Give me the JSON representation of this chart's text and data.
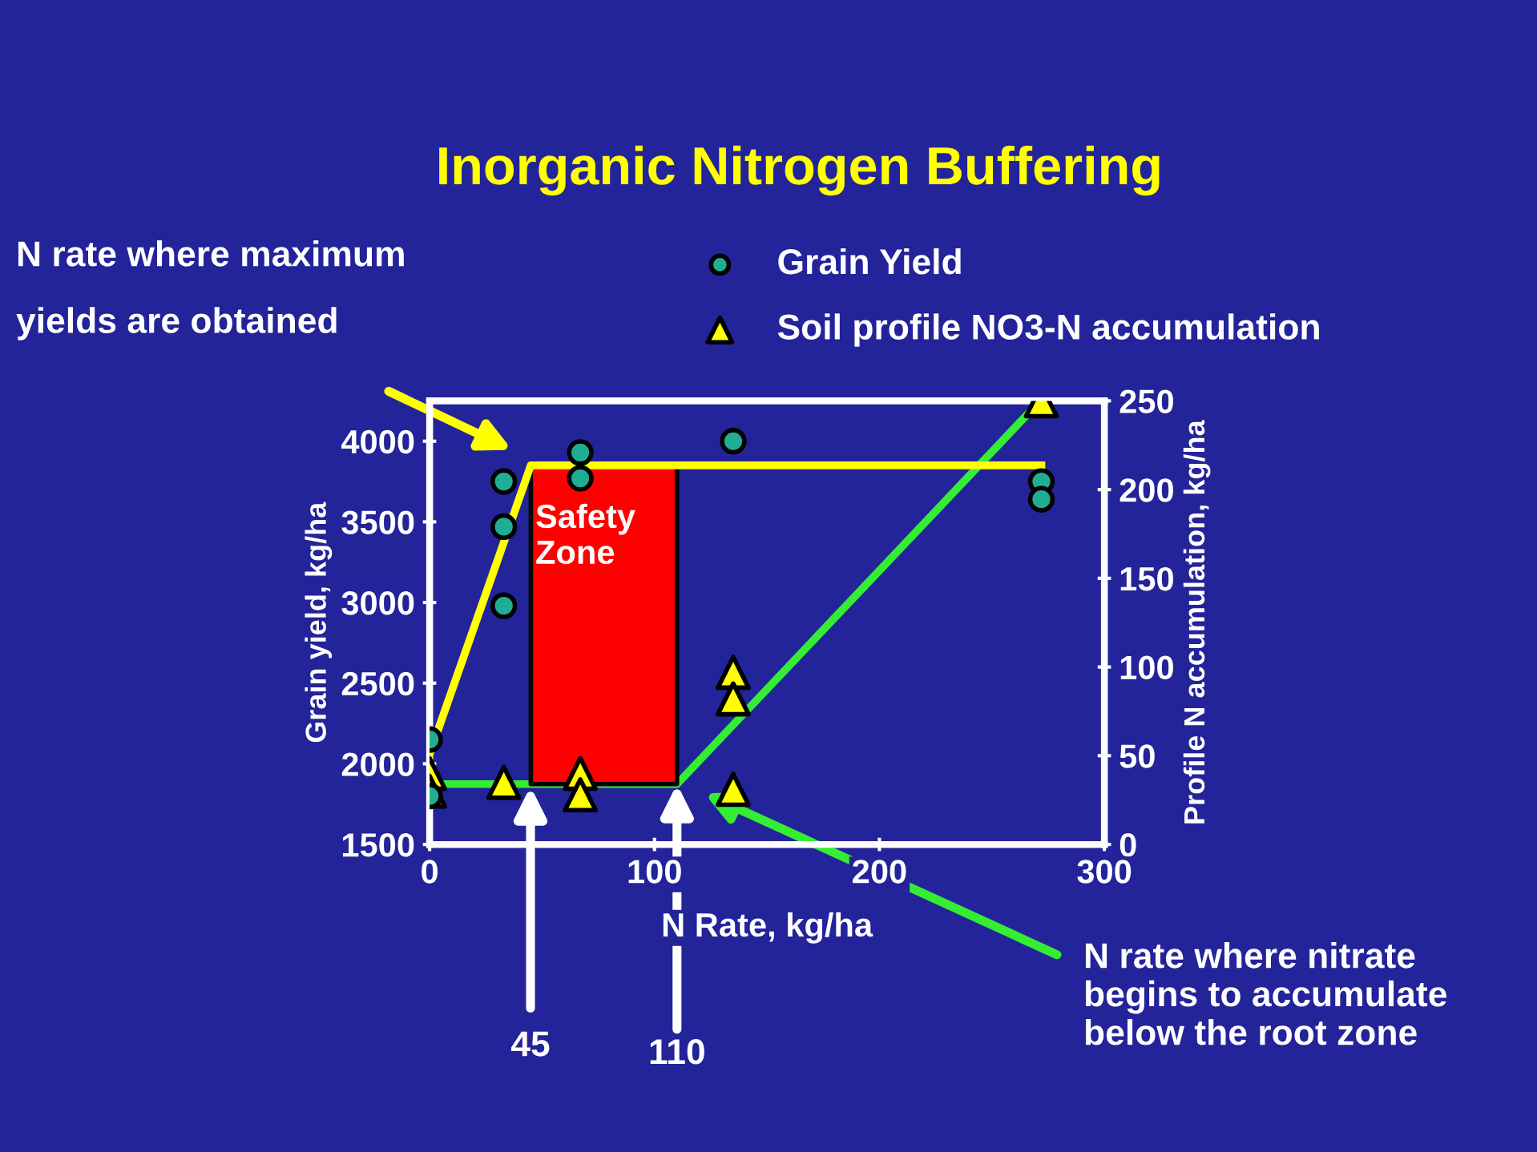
{
  "chart_data": {
    "type": "scatter",
    "title": "Inorganic Nitrogen Buffering",
    "xlabel": "N Rate, kg/ha",
    "ylabel": "Grain yield, kg/ha",
    "y2label": "Profile N accumulation, kg/ha",
    "xlim": [
      0,
      300
    ],
    "xticks": [
      0,
      100,
      200,
      300
    ],
    "ylim": [
      1500,
      4250
    ],
    "yticks": [
      1500,
      2000,
      2500,
      3000,
      3500,
      4000
    ],
    "y2lim": [
      0,
      250
    ],
    "y2ticks": [
      0,
      50,
      100,
      150,
      200,
      250
    ],
    "grid": false,
    "legend": "top",
    "series": [
      {
        "name": "Grain Yield",
        "marker": "circle",
        "color": "#1fae94",
        "x": [
          0,
          0,
          33,
          33,
          33,
          67,
          67,
          135,
          272,
          272
        ],
        "values": [
          2150,
          1800,
          3750,
          3470,
          2980,
          3930,
          3770,
          4000,
          3750,
          3640
        ]
      },
      {
        "name": "Soil profile NO3-N accumulation",
        "marker": "triangle",
        "axis": "y2",
        "color": "#ffff00",
        "x": [
          0,
          0,
          33,
          67,
          67,
          135,
          135,
          135,
          272
        ],
        "values": [
          40,
          30,
          35,
          40,
          28,
          97,
          82,
          31,
          250
        ]
      },
      {
        "type": "line",
        "marker": "none",
        "color": "#ffff00",
        "x": [
          0,
          45,
          272
        ],
        "values": [
          2060,
          3850,
          3850
        ]
      },
      {
        "type": "line",
        "marker": "none",
        "axis": "y2",
        "color": "#33ee33",
        "x": [
          0,
          110,
          267
        ],
        "values": [
          34,
          34,
          244
        ]
      }
    ],
    "bands": [
      {
        "axis": "x",
        "from": 45,
        "to": 110,
        "label": "Safety\nZone",
        "color": "#ff0000"
      }
    ],
    "annotations": [
      "N rate where maximum\nyields are obtained",
      "45",
      {
        "text": "110",
        "x": 110,
        "y": 1875
      },
      "N rate where nitrate\nbegins to accumulate\nbelow the root zone"
    ]
  }
}
